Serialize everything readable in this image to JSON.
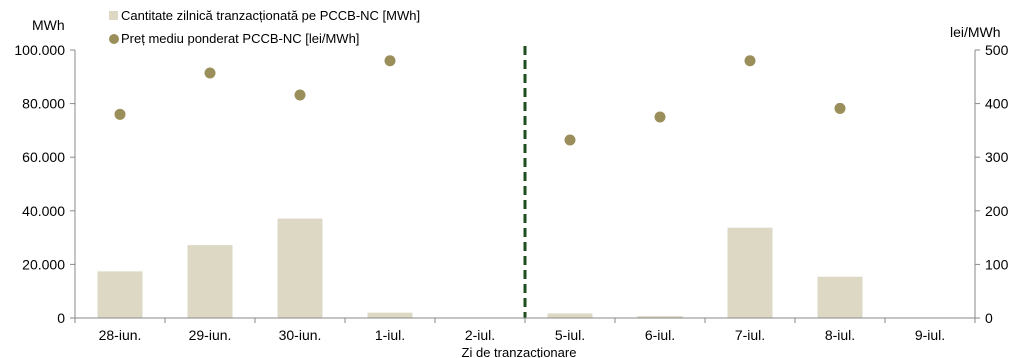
{
  "chart_data": {
    "type": "bar",
    "xlabel": "Zi de tranzacționare",
    "y_left_unit": "MWh",
    "y_right_unit": "lei/MWh",
    "categories": [
      "28-iun.",
      "29-iun.",
      "30-iun.",
      "1-iul.",
      "2-iul.",
      "5-iul.",
      "6-iul.",
      "7-iul.",
      "8-iul.",
      "9-iul."
    ],
    "ylim_left": [
      0,
      100000
    ],
    "ylim_right": [
      0,
      500
    ],
    "y_left_ticks": [
      "0",
      "20.000",
      "40.000",
      "60.000",
      "80.000",
      "100.000"
    ],
    "y_right_ticks": [
      "0",
      "100",
      "200",
      "300",
      "400",
      "500"
    ],
    "series": [
      {
        "name": "Cantitate zilnică tranzacționată pe PCCB-NC [MWh]",
        "type": "bar",
        "axis": "left",
        "color": "#ddd8c4",
        "values": [
          17400,
          27200,
          37100,
          2000,
          0,
          1700,
          700,
          33700,
          15400,
          0
        ]
      },
      {
        "name": "Preț mediu ponderat PCCB-NC [lei/MWh]",
        "type": "scatter",
        "axis": "right",
        "color": "#9a8f5b",
        "values": [
          380,
          457,
          416,
          480,
          null,
          332,
          375,
          480,
          391,
          null
        ]
      }
    ],
    "separator_after_category": "2-iul.",
    "separator_color": "#1e4d1e",
    "grid": false,
    "legend_placement": "top-left"
  }
}
